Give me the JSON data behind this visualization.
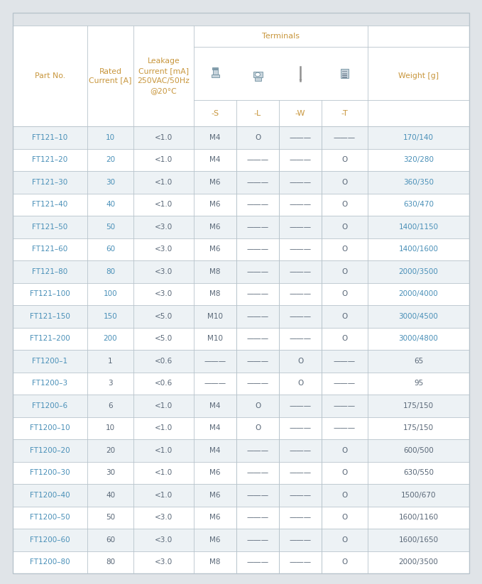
{
  "bg_color": "#e0e4e8",
  "table_bg": "#ffffff",
  "border_color": "#b8c4cc",
  "text_blue": "#4a90b8",
  "text_orange": "#c8963c",
  "text_dark": "#5a6878",
  "terminals_label": "Terminals",
  "header_col0": "Part No.",
  "header_col1": "Rated\nCurrent [A]",
  "header_col2": "Leakage\nCurrent [mA]\n250VAC/50Hz\n@20°C",
  "header_col7": "Weight [g]",
  "sub_labels": [
    "-S",
    "-L",
    "-W",
    "-T"
  ],
  "rows": [
    [
      "FT121–10",
      "10",
      "<1.0",
      "M4",
      "O",
      "———",
      "———",
      "170/140",
      true
    ],
    [
      "FT121–20",
      "20",
      "<1.0",
      "M4",
      "———",
      "———",
      "O",
      "320/280",
      true
    ],
    [
      "FT121–30",
      "30",
      "<1.0",
      "M6",
      "———",
      "———",
      "O",
      "360/350",
      true
    ],
    [
      "FT121–40",
      "40",
      "<1.0",
      "M6",
      "———",
      "———",
      "O",
      "630/470",
      true
    ],
    [
      "FT121–50",
      "50",
      "<3.0",
      "M6",
      "———",
      "———",
      "O",
      "1400/1150",
      true
    ],
    [
      "FT121–60",
      "60",
      "<3.0",
      "M6",
      "———",
      "———",
      "O",
      "1400/1600",
      true
    ],
    [
      "FT121–80",
      "80",
      "<3.0",
      "M8",
      "———",
      "———",
      "O",
      "2000/3500",
      true
    ],
    [
      "FT121–100",
      "100",
      "<3.0",
      "M8",
      "———",
      "———",
      "O",
      "2000/4000",
      true
    ],
    [
      "FT121–150",
      "150",
      "<5.0",
      "M10",
      "———",
      "———",
      "O",
      "3000/4500",
      true
    ],
    [
      "FT121–200",
      "200",
      "<5.0",
      "M10",
      "———",
      "———",
      "O",
      "3000/4800",
      true
    ],
    [
      "FT1200–1",
      "1",
      "<0.6",
      "———",
      "———",
      "O",
      "———",
      "65",
      false
    ],
    [
      "FT1200–3",
      "3",
      "<0.6",
      "———",
      "———",
      "O",
      "———",
      "95",
      false
    ],
    [
      "FT1200–6",
      "6",
      "<1.0",
      "M4",
      "O",
      "———",
      "———",
      "175/150",
      false
    ],
    [
      "FT1200–10",
      "10",
      "<1.0",
      "M4",
      "O",
      "———",
      "———",
      "175/150",
      false
    ],
    [
      "FT1200–20",
      "20",
      "<1.0",
      "M4",
      "———",
      "———",
      "O",
      "600/500",
      false
    ],
    [
      "FT1200–30",
      "30",
      "<1.0",
      "M6",
      "———",
      "———",
      "O",
      "630/550",
      false
    ],
    [
      "FT1200–40",
      "40",
      "<1.0",
      "M6",
      "———",
      "———",
      "O",
      "1500/670",
      false
    ],
    [
      "FT1200–50",
      "50",
      "<3.0",
      "M6",
      "———",
      "———",
      "O",
      "1600/1160",
      false
    ],
    [
      "FT1200–60",
      "60",
      "<3.0",
      "M6",
      "———",
      "———",
      "O",
      "1600/1650",
      false
    ],
    [
      "FT1200–80",
      "80",
      "<3.0",
      "M8",
      "———",
      "———",
      "O",
      "2000/3500",
      false
    ]
  ]
}
